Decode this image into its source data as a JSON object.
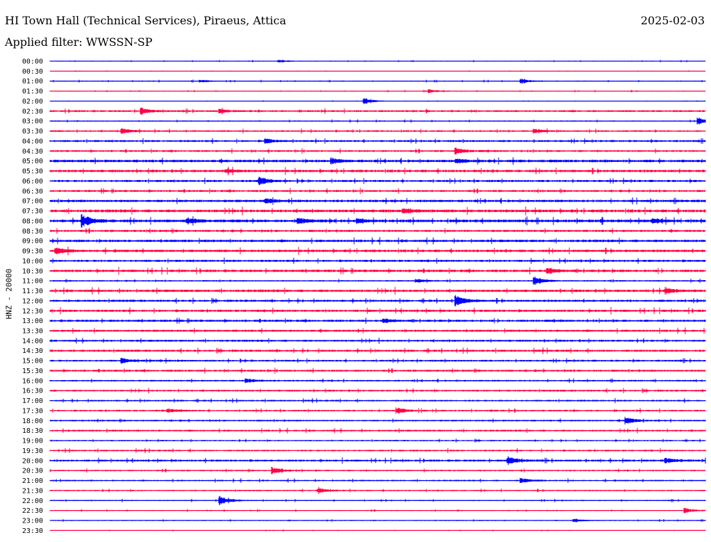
{
  "header": {
    "title": "HI Town Hall (Technical Services), Piraeus, Attica",
    "date": "2025-02-03",
    "filter": "Applied filter: WWSSN-SP"
  },
  "channel_label": "HNZ - 20000",
  "colors": {
    "even_row": "#0000ff",
    "odd_row": "#ff0044",
    "text": "#000000"
  },
  "chart_data": {
    "type": "line",
    "title": "HI Town Hall (Technical Services), Piraeus, Attica",
    "subtitle": "Applied filter: WWSSN-SP",
    "ylabel": "HNZ - 20000",
    "grid": false,
    "row_labels": [
      "00:00",
      "00:30",
      "01:00",
      "01:30",
      "02:00",
      "02:30",
      "03:00",
      "03:30",
      "04:00",
      "04:30",
      "05:00",
      "05:30",
      "06:00",
      "06:30",
      "07:00",
      "07:30",
      "08:00",
      "08:30",
      "09:00",
      "09:30",
      "10:00",
      "10:30",
      "11:00",
      "11:30",
      "12:00",
      "12:30",
      "13:00",
      "13:30",
      "14:00",
      "14:30",
      "15:00",
      "15:30",
      "16:00",
      "16:30",
      "17:00",
      "17:30",
      "18:00",
      "18:30",
      "19:00",
      "19:30",
      "20:00",
      "20:30",
      "21:00",
      "21:30",
      "22:00",
      "22:30",
      "23:00",
      "23:30"
    ],
    "noise_level": [
      0.1,
      0.06,
      0.12,
      0.1,
      0.06,
      0.22,
      0.14,
      0.2,
      0.24,
      0.22,
      0.32,
      0.3,
      0.26,
      0.24,
      0.3,
      0.34,
      0.34,
      0.26,
      0.3,
      0.3,
      0.26,
      0.3,
      0.18,
      0.3,
      0.26,
      0.28,
      0.26,
      0.26,
      0.24,
      0.26,
      0.22,
      0.24,
      0.2,
      0.22,
      0.2,
      0.2,
      0.2,
      0.22,
      0.16,
      0.2,
      0.24,
      0.18,
      0.18,
      0.16,
      0.14,
      0.12,
      0.12,
      0.08
    ],
    "events": [
      {
        "row": 0,
        "t": 0.35,
        "amp": 0.3
      },
      {
        "row": 2,
        "t": 0.72,
        "amp": 0.5
      },
      {
        "row": 2,
        "t": 0.23,
        "amp": 0.3
      },
      {
        "row": 3,
        "t": 0.58,
        "amp": 0.4
      },
      {
        "row": 4,
        "t": 0.48,
        "amp": 0.8
      },
      {
        "row": 5,
        "t": 0.14,
        "amp": 0.7
      },
      {
        "row": 5,
        "t": 0.26,
        "amp": 0.4
      },
      {
        "row": 6,
        "t": 0.99,
        "amp": 0.8
      },
      {
        "row": 7,
        "t": 0.11,
        "amp": 0.6
      },
      {
        "row": 7,
        "t": 0.74,
        "amp": 0.5
      },
      {
        "row": 8,
        "t": 0.33,
        "amp": 0.5
      },
      {
        "row": 9,
        "t": 0.62,
        "amp": 0.7
      },
      {
        "row": 10,
        "t": 0.43,
        "amp": 0.6
      },
      {
        "row": 10,
        "t": 0.62,
        "amp": 0.5
      },
      {
        "row": 11,
        "t": 0.27,
        "amp": 0.5
      },
      {
        "row": 12,
        "t": 0.32,
        "amp": 0.9
      },
      {
        "row": 14,
        "t": 0.33,
        "amp": 0.5
      },
      {
        "row": 15,
        "t": 0.54,
        "amp": 0.5
      },
      {
        "row": 16,
        "t": 0.05,
        "amp": 1.6
      },
      {
        "row": 16,
        "t": 0.21,
        "amp": 0.7
      },
      {
        "row": 16,
        "t": 0.38,
        "amp": 0.6
      },
      {
        "row": 16,
        "t": 0.47,
        "amp": 0.5
      },
      {
        "row": 16,
        "t": 0.92,
        "amp": 0.5
      },
      {
        "row": 19,
        "t": 0.01,
        "amp": 0.8
      },
      {
        "row": 21,
        "t": 0.76,
        "amp": 0.7
      },
      {
        "row": 22,
        "t": 0.74,
        "amp": 1.0
      },
      {
        "row": 22,
        "t": 0.56,
        "amp": 0.4
      },
      {
        "row": 23,
        "t": 0.94,
        "amp": 0.6
      },
      {
        "row": 24,
        "t": 0.62,
        "amp": 1.3
      },
      {
        "row": 26,
        "t": 0.51,
        "amp": 0.5
      },
      {
        "row": 30,
        "t": 0.11,
        "amp": 0.6
      },
      {
        "row": 32,
        "t": 0.3,
        "amp": 0.5
      },
      {
        "row": 35,
        "t": 0.53,
        "amp": 0.7
      },
      {
        "row": 35,
        "t": 0.18,
        "amp": 0.5
      },
      {
        "row": 36,
        "t": 0.88,
        "amp": 0.8
      },
      {
        "row": 40,
        "t": 0.7,
        "amp": 0.9
      },
      {
        "row": 40,
        "t": 0.94,
        "amp": 0.6
      },
      {
        "row": 41,
        "t": 0.34,
        "amp": 0.8
      },
      {
        "row": 42,
        "t": 0.72,
        "amp": 0.6
      },
      {
        "row": 43,
        "t": 0.41,
        "amp": 0.6
      },
      {
        "row": 44,
        "t": 0.26,
        "amp": 1.0
      },
      {
        "row": 45,
        "t": 0.97,
        "amp": 0.6
      },
      {
        "row": 46,
        "t": 0.8,
        "amp": 0.4
      }
    ]
  }
}
